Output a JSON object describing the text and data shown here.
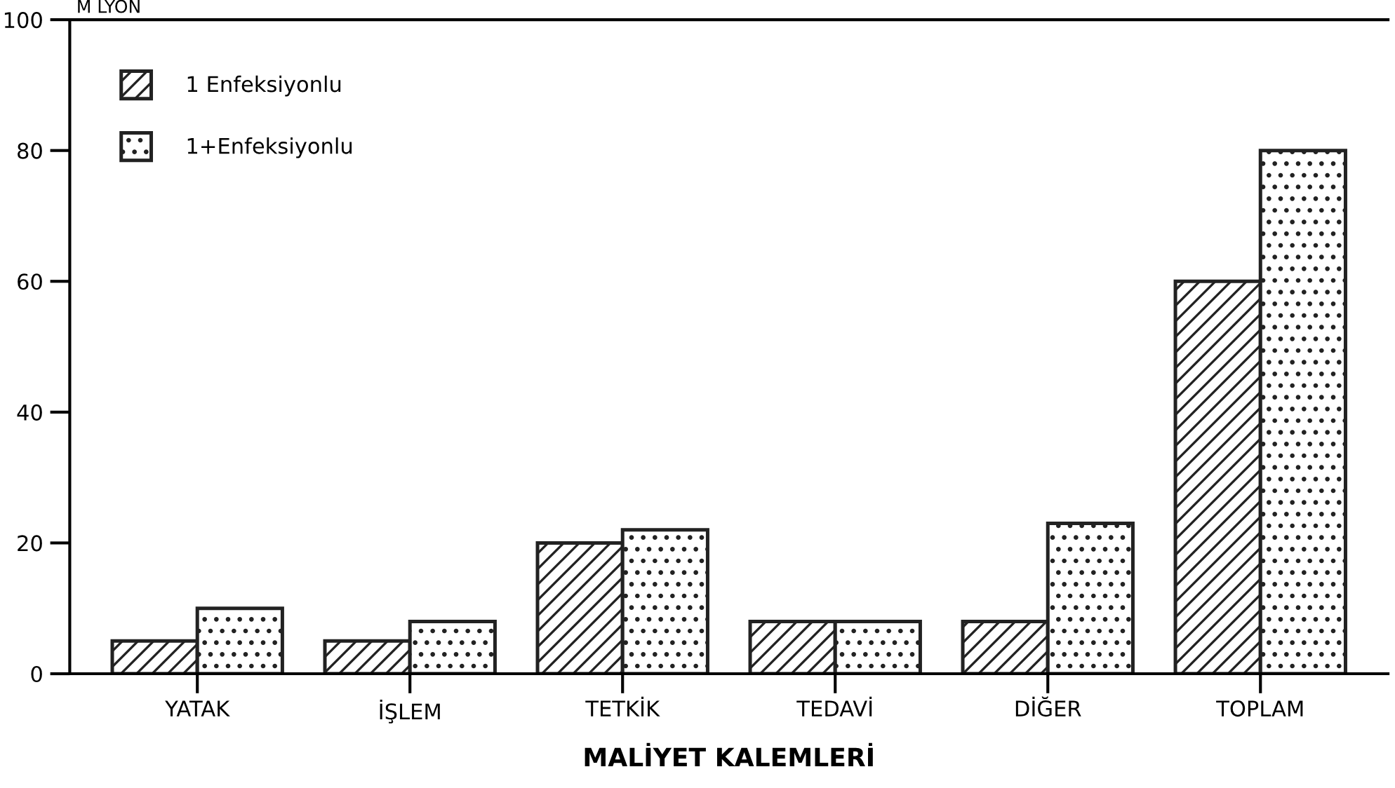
{
  "chart_data": {
    "type": "bar",
    "xlabel": "MALİYET KALEMLERİ",
    "ylabel": "M LYON",
    "categories": [
      "YATAK",
      "İŞLEM",
      "TETKİK",
      "TEDAVİ",
      "DİĞER",
      "TOPLAM"
    ],
    "series": [
      {
        "name": "1 Enfeksiyonlu",
        "color": "#222222",
        "values": [
          5,
          5,
          20,
          8,
          8,
          60
        ]
      },
      {
        "name": "1+Enfeksiyonlu",
        "color": "#222222",
        "values": [
          10,
          8,
          22,
          8,
          23,
          80
        ]
      }
    ],
    "ylim": [
      0,
      100
    ],
    "yticks": [
      0,
      20,
      40,
      60,
      80,
      100
    ],
    "grid": false,
    "legend": "top left"
  }
}
